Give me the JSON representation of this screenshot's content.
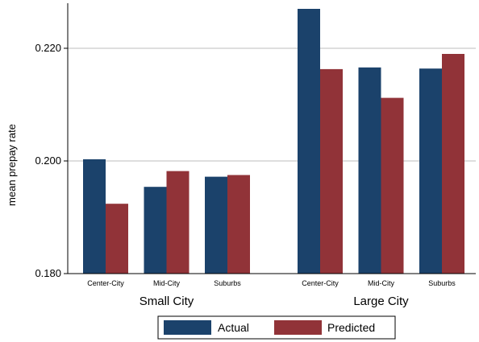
{
  "chart_data": {
    "type": "bar",
    "ylabel": "mean prepay rate",
    "ylim": [
      0.18,
      0.228
    ],
    "yticks": [
      "0.180",
      "0.200",
      "0.220"
    ],
    "grid": true,
    "legend_position": "bottom",
    "colors": {
      "Actual": "#1b426b",
      "Predicted": "#913338"
    },
    "groups": [
      {
        "label": "Small City",
        "categories": [
          "Center-City",
          "Mid-City",
          "Suburbs"
        ],
        "series": [
          {
            "name": "Actual",
            "values": [
              0.2003,
              0.1954,
              0.1972
            ]
          },
          {
            "name": "Predicted",
            "values": [
              0.1924,
              0.1982,
              0.1975
            ]
          }
        ]
      },
      {
        "label": "Large City",
        "categories": [
          "Center-City",
          "Mid-City",
          "Suburbs"
        ],
        "series": [
          {
            "name": "Actual",
            "values": [
              0.227,
              0.2166,
              0.2164
            ]
          },
          {
            "name": "Predicted",
            "values": [
              0.2163,
              0.2112,
              0.219
            ]
          }
        ]
      }
    ],
    "legend": [
      "Actual",
      "Predicted"
    ]
  }
}
